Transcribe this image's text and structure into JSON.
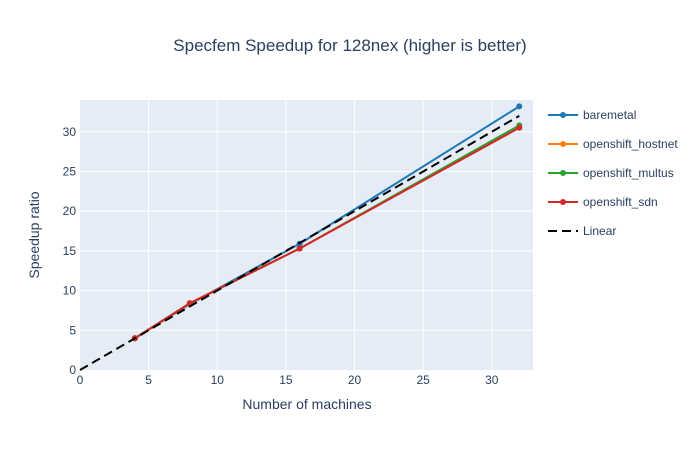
{
  "chart_data": {
    "type": "line",
    "title": "Specfem Speedup for 128nex (higher is better)",
    "xlabel": "Number of machines",
    "ylabel": "Speedup ratio",
    "xlim": [
      0,
      33
    ],
    "ylim": [
      0,
      34
    ],
    "xticks": [
      0,
      5,
      10,
      15,
      20,
      25,
      30
    ],
    "yticks": [
      0,
      5,
      10,
      15,
      20,
      25,
      30
    ],
    "grid": true,
    "legend_position": "right",
    "x": [
      4,
      8,
      16,
      32
    ],
    "series": [
      {
        "name": "baremetal",
        "color": "#1f77b4",
        "values": [
          4.0,
          8.3,
          15.9,
          33.2
        ]
      },
      {
        "name": "openshift_hostnet",
        "color": "#ff7f0e",
        "values": [
          4.0,
          8.4,
          15.3,
          30.7
        ]
      },
      {
        "name": "openshift_multus",
        "color": "#2ca02c",
        "values": [
          4.0,
          8.4,
          15.3,
          30.8
        ]
      },
      {
        "name": "openshift_sdn",
        "color": "#d62728",
        "values": [
          4.0,
          8.4,
          15.3,
          30.5
        ]
      }
    ],
    "reference": {
      "name": "Linear",
      "color": "#000000",
      "dash": true,
      "x": [
        0,
        32
      ],
      "values": [
        0,
        32
      ]
    }
  }
}
